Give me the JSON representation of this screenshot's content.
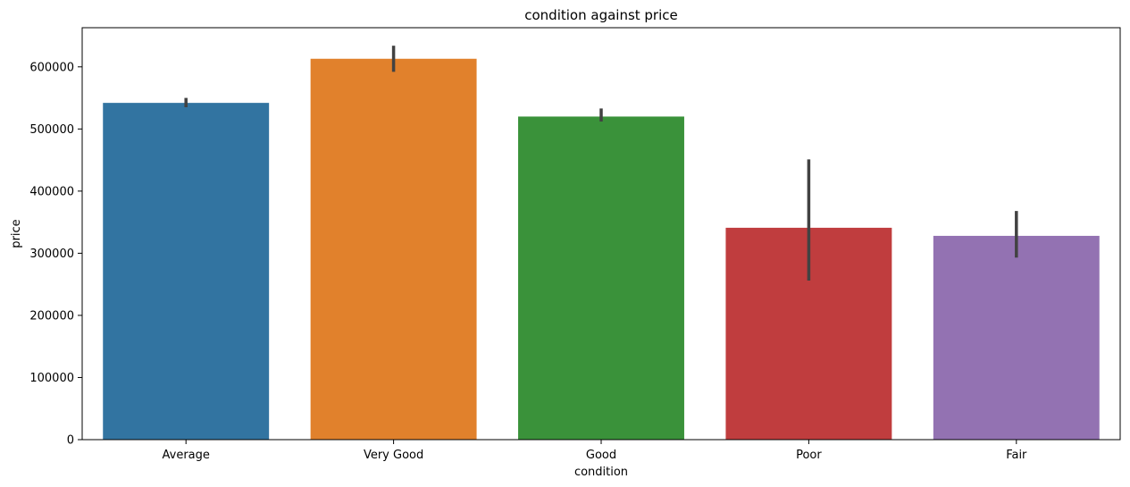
{
  "chart_data": {
    "type": "bar",
    "title": "condition against price",
    "xlabel": "condition",
    "ylabel": "price",
    "ylim": [
      0,
      663000
    ],
    "yticks": [
      0,
      100000,
      200000,
      300000,
      400000,
      500000,
      600000
    ],
    "ytick_labels": [
      "0",
      "100000",
      "200000",
      "300000",
      "400000",
      "500000",
      "600000"
    ],
    "categories": [
      "Average",
      "Very Good",
      "Good",
      "Poor",
      "Fair"
    ],
    "values": [
      542000,
      613000,
      520000,
      341000,
      328000
    ],
    "error_low": [
      535000,
      592000,
      512000,
      256000,
      293000
    ],
    "error_high": [
      550000,
      634000,
      533000,
      451000,
      368000
    ],
    "colors": [
      "#3274a1",
      "#e1812c",
      "#3a923a",
      "#c03d3e",
      "#9372b2"
    ],
    "error_color": "#424242",
    "grid": false,
    "legend": "none"
  }
}
